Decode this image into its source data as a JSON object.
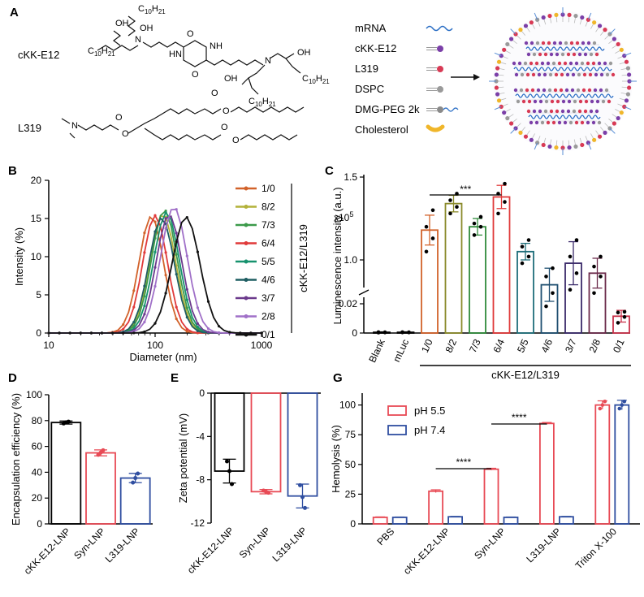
{
  "panels": {
    "A": "A",
    "B": "B",
    "C": "C",
    "D": "D",
    "E": "E",
    "G": "G"
  },
  "chem": {
    "ckk_name": "cKK-E12",
    "l319_name": "L319",
    "labels": [
      "C",
      "10",
      "H",
      "21",
      "OH",
      "N",
      "HN",
      "NH",
      "O"
    ]
  },
  "legend_a": [
    {
      "label": "mRNA",
      "icon": "mrna-wave-icon",
      "color": "#2c6fc5"
    },
    {
      "label": "cKK-E12",
      "icon": "lipid-tail-icon",
      "color": "#7b3fa8"
    },
    {
      "label": "L319",
      "icon": "lipid-tail-icon",
      "color": "#d83a55"
    },
    {
      "label": "DSPC",
      "icon": "lipid-tail-icon",
      "color": "#9a9a9a"
    },
    {
      "label": "DMG-PEG 2k",
      "icon": "peg-lipid-icon",
      "color": "#8a8a8a"
    },
    {
      "label": "Cholesterol",
      "icon": "cholesterol-icon",
      "color": "#f0b62a"
    }
  ],
  "chart_data": [
    {
      "id": "B",
      "type": "line",
      "xlabel": "Diameter (nm)",
      "ylabel": "Intensity (%)",
      "xscale": "log",
      "xlim": [
        10,
        1000
      ],
      "ylim": [
        0,
        20
      ],
      "xticks": [
        "10",
        "100",
        "1000"
      ],
      "yticks": [
        0,
        5,
        10,
        15,
        20
      ],
      "legend_title": "cKK-E12/L319",
      "legend_position": "right",
      "series": [
        {
          "name": "1/0",
          "color": "#d2622a",
          "peak": 92,
          "sigma": 0.115,
          "height": 15.3
        },
        {
          "name": "8/2",
          "color": "#b3b23a",
          "peak": 118,
          "sigma": 0.12,
          "height": 15.6
        },
        {
          "name": "7/3",
          "color": "#3c9a4a",
          "peak": 122,
          "sigma": 0.12,
          "height": 16.1
        },
        {
          "name": "6/4",
          "color": "#e03a3a",
          "peak": 100,
          "sigma": 0.115,
          "height": 15.4
        },
        {
          "name": "5/5",
          "color": "#17926e",
          "peak": 128,
          "sigma": 0.12,
          "height": 15.8
        },
        {
          "name": "4/6",
          "color": "#1f5e62",
          "peak": 115,
          "sigma": 0.12,
          "height": 15.1
        },
        {
          "name": "3/7",
          "color": "#6b3a8c",
          "peak": 135,
          "sigma": 0.12,
          "height": 15.5
        },
        {
          "name": "2/8",
          "color": "#a070c8",
          "peak": 150,
          "sigma": 0.125,
          "height": 16.5
        },
        {
          "name": "0/1",
          "color": "#111111",
          "peak": 195,
          "sigma": 0.13,
          "height": 15.2
        }
      ]
    },
    {
      "id": "C",
      "type": "bar",
      "ylabel": "Luminescence intensity (a.u.)",
      "y_multiplier_label": "x10",
      "y_multiplier_exp": "5",
      "ytick_labels": [
        "0",
        "0.02",
        "1.0",
        "1.5"
      ],
      "xlabel": "cKK-E12/L319",
      "categories": [
        "Blank",
        "mLuc",
        "1/0",
        "8/2",
        "7/3",
        "6/4",
        "5/5",
        "4/6",
        "3/7",
        "2/8",
        "0/1"
      ],
      "colors": [
        "#000000",
        "#000000",
        "#d2622a",
        "#8a8a2a",
        "#2f8a3a",
        "#e03a3a",
        "#1f6e7a",
        "#1f4f70",
        "#3a2a6a",
        "#6b2a4a",
        "#c8324a"
      ],
      "values": [
        0.0005,
        0.0005,
        1.18,
        1.34,
        1.2,
        1.38,
        1.05,
        0.85,
        0.98,
        0.92,
        0.0115
      ],
      "errors": [
        0.0003,
        0.0003,
        0.09,
        0.05,
        0.05,
        0.07,
        0.05,
        0.1,
        0.13,
        0.09,
        0.004
      ],
      "points": [
        [
          0.0003,
          0.0004,
          0.0006,
          0.0005
        ],
        [
          0.0004,
          0.0005,
          0.0006,
          0.0004
        ],
        [
          1.05,
          1.13,
          1.2,
          1.3
        ],
        [
          1.28,
          1.32,
          1.36,
          1.4
        ],
        [
          1.15,
          1.2,
          1.22,
          1.26
        ],
        [
          1.28,
          1.35,
          1.4,
          1.46
        ],
        [
          0.98,
          1.02,
          1.08,
          1.12
        ],
        [
          0.72,
          0.8,
          0.9,
          0.95
        ],
        [
          0.82,
          0.92,
          1.02,
          1.12
        ],
        [
          0.8,
          0.9,
          0.96,
          1.02
        ],
        [
          0.007,
          0.011,
          0.014,
          0.0145
        ]
      ],
      "significance": "***"
    },
    {
      "id": "D",
      "type": "bar",
      "ylabel": "Encapsulation efficiency (%)",
      "ylim": [
        0,
        100
      ],
      "yticks": [
        0,
        20,
        40,
        60,
        80,
        100
      ],
      "categories": [
        "cKK-E12-LNP",
        "Syn-LNP",
        "L319-LNP"
      ],
      "colors": [
        "#000000",
        "#e84a55",
        "#2f4ea0"
      ],
      "values": [
        78.5,
        55.0,
        35.5
      ],
      "errors": [
        1.2,
        2.3,
        3.6
      ],
      "points": [
        [
          77.8,
          78.6,
          79.2
        ],
        [
          53.5,
          55.2,
          57.0
        ],
        [
          32.0,
          35.5,
          39.0
        ]
      ]
    },
    {
      "id": "E",
      "type": "bar",
      "ylabel": "Zeta potential (mV)",
      "ylim": [
        -12,
        0
      ],
      "yticks": [
        0,
        -4,
        -8,
        -12
      ],
      "categories": [
        "cKK-E12-LNP",
        "Syn-LNP",
        "L319-LNP"
      ],
      "colors": [
        "#000000",
        "#e84a55",
        "#2f4ea0"
      ],
      "values": [
        -7.2,
        -9.1,
        -9.5
      ],
      "errors": [
        1.1,
        0.2,
        1.1
      ],
      "points": [
        [
          -6.3,
          -7.2,
          -8.4
        ],
        [
          -9.0,
          -9.1,
          -9.2
        ],
        [
          -8.5,
          -9.6,
          -10.6
        ]
      ]
    },
    {
      "id": "G",
      "type": "bar",
      "ylabel": "Hemolysis (%)",
      "ylim": [
        0,
        110
      ],
      "yticks": [
        0,
        25,
        50,
        75,
        100
      ],
      "categories": [
        "PBS",
        "cKK-E12-LNP",
        "Syn-LNP",
        "L319-LNP",
        "Triton X-100"
      ],
      "legend_position": "top-left",
      "series": [
        {
          "name": "pH 5.5",
          "color": "#e84a55",
          "values": [
            5.5,
            27.5,
            46.0,
            84.5,
            100.0
          ],
          "errors": [
            0.4,
            1.2,
            0.8,
            0.8,
            3.5
          ]
        },
        {
          "name": "pH 7.4",
          "color": "#2f4ea0",
          "values": [
            5.5,
            6.0,
            5.5,
            6.0,
            100.0
          ],
          "errors": [
            0.3,
            0.3,
            0.3,
            0.3,
            4.0
          ]
        }
      ],
      "significance": [
        "****",
        "****"
      ]
    }
  ]
}
